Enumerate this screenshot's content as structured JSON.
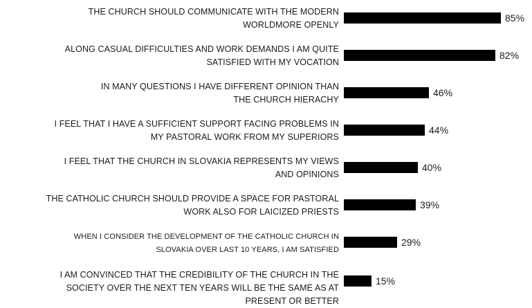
{
  "chart_data": {
    "type": "bar",
    "orientation": "horizontal",
    "categories": [
      "THE CHURCH SHOULD COMMUNICATE WITH THE MODERN WORLDMORE OPENLY",
      "ALONG CASUAL DIFFICULTIES AND WORK DEMANDS I AM QUITE SATISFIED WITH MY VOCATION",
      "IN MANY QUESTIONS I HAVE DIFFERENT OPINION THAN THE CHURCH HIERACHY",
      "I FEEL THAT I HAVE A SUFFICIENT SUPPORT FACING PROBLEMS IN MY PASTORAL WORK FROM MY SUPERIORS",
      "I FEEL THAT THE CHURCH IN SLOVAKIA REPRESENTS MY VIEWS AND OPINIONS",
      "THE CATHOLIC CHURCH SHOULD PROVIDE A SPACE FOR PASTORAL WORK ALSO FOR LAICIZED PRIESTS",
      "WHEN I CONSIDER THE DEVELOPMENT OF THE CATHOLIC CHURCH IN SLOVAKIA OVER LAST 10 YEARS, I AM SATISFIED",
      "I AM CONVINCED THAT THE CREDIBILITY OF THE CHURCH IN THE SOCIETY OVER THE NEXT TEN YEARS WILL BE THE SAME AS AT PRESENT OR BETTER"
    ],
    "values": [
      85,
      82,
      46,
      44,
      40,
      39,
      29,
      15
    ],
    "value_labels": [
      "85%",
      "82%",
      "46%",
      "44%",
      "40%",
      "39%",
      "29%",
      "15%"
    ],
    "bar_color": "#000000",
    "xlim": [
      0,
      100
    ],
    "grid": false,
    "legend": "none"
  }
}
